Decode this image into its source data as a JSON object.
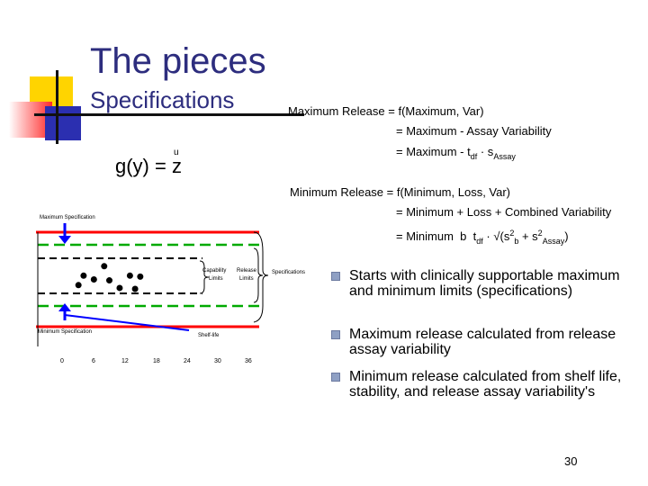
{
  "slide": {
    "title": "The pieces",
    "subtitle": "Specifications",
    "page_number": "30"
  },
  "equations": {
    "gy_lhs": "g(y) = z",
    "gy_hat": "u",
    "max_release_line1": "Maximum Release = f(Maximum, Var)",
    "max_release_line2": "= Maximum - Assay Variability",
    "max_release_line3_prefix": "= Maximum - t",
    "max_release_line3_sub_df": "df",
    "max_release_line3_suffix": "· s",
    "max_release_line3_sub_assay": "Assay",
    "min_release_line1": "Minimum Release = f(Minimum, Loss, Var)",
    "min_release_line2": "= Minimum + Loss + Combined Variability",
    "min_release_line3_prefix": "= Minimum",
    "min_release_line3_b": "b",
    "min_release_line3_t": "t",
    "min_release_line3_sub_df": "df",
    "min_release_line3_s": "s",
    "min_release_line3_sup_2": "2",
    "min_release_line3_sub_b": "b",
    "min_release_line3_sub_assay": "Assay"
  },
  "chart": {
    "max_spec_label": "Maximum Specification",
    "min_spec_label": "Minimum Specification",
    "capability_label_1": "Capability",
    "capability_label_2": "Limits",
    "release_label_1": "Release",
    "release_label_2": "Limits",
    "specifications_label": "Specifications",
    "shelf_life_label": "Shelf-life",
    "x_ticks": [
      "0",
      "6",
      "12",
      "18",
      "24",
      "30",
      "36"
    ]
  },
  "chart_data": {
    "type": "scatter",
    "x_ticks": [
      0,
      6,
      12,
      18,
      24,
      30,
      36
    ],
    "points": [
      {
        "x": 3,
        "y": 0.56
      },
      {
        "x": 4,
        "y": 0.46
      },
      {
        "x": 6,
        "y": 0.5
      },
      {
        "x": 8,
        "y": 0.36
      },
      {
        "x": 9,
        "y": 0.51
      },
      {
        "x": 11,
        "y": 0.59
      },
      {
        "x": 13,
        "y": 0.46
      },
      {
        "x": 14,
        "y": 0.6
      },
      {
        "x": 15,
        "y": 0.47
      }
    ],
    "colors": {
      "specification": "#ff0000",
      "release_limits": "#00aa00",
      "capability_limits": "#000000",
      "degradation": "#0000ff"
    }
  },
  "bullets": [
    "Starts with clinically supportable maximum and minimum limits (specifications)",
    "Maximum release calculated from release assay variability",
    "Minimum release calculated from shelf life, stability, and release assay variability's"
  ]
}
